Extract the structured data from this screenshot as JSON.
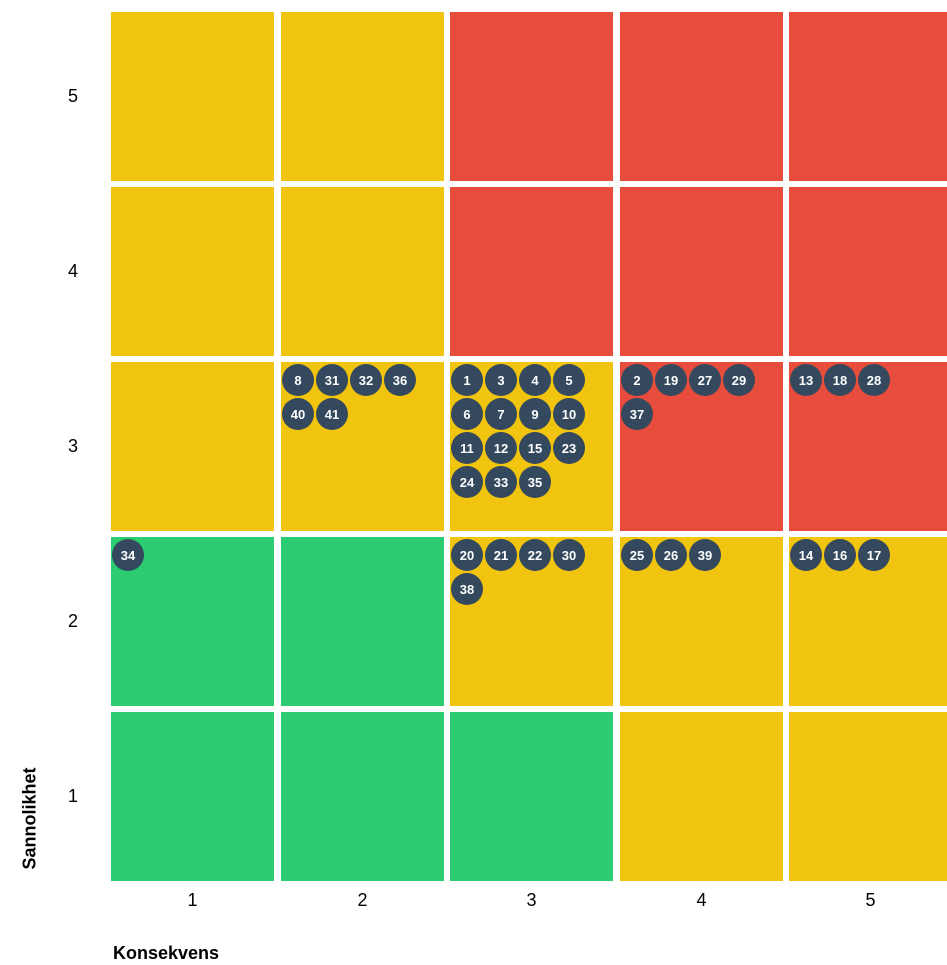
{
  "chart_data": {
    "type": "heatmap",
    "xlabel": "Konsekvens",
    "ylabel": "Sannolikhet",
    "x_ticks": [
      "1",
      "2",
      "3",
      "4",
      "5"
    ],
    "y_ticks": [
      "1",
      "2",
      "3",
      "4",
      "5"
    ],
    "colors": {
      "green": "#2ecc71",
      "yellow": "#f1c40f",
      "red": "#e74c3c",
      "marker": "#34495e",
      "marker_text": "#ffffff"
    },
    "cell_colors": [
      [
        "green",
        "green",
        "green",
        "yellow",
        "yellow"
      ],
      [
        "green",
        "green",
        "yellow",
        "yellow",
        "yellow"
      ],
      [
        "yellow",
        "yellow",
        "yellow",
        "red",
        "red"
      ],
      [
        "yellow",
        "yellow",
        "red",
        "red",
        "red"
      ],
      [
        "yellow",
        "yellow",
        "red",
        "red",
        "red"
      ]
    ],
    "risks": [
      {
        "likelihood": 2,
        "consequence": 1,
        "ids": [
          "34"
        ]
      },
      {
        "likelihood": 3,
        "consequence": 2,
        "ids": [
          "8",
          "31",
          "32",
          "36",
          "40",
          "41"
        ]
      },
      {
        "likelihood": 3,
        "consequence": 3,
        "ids": [
          "1",
          "3",
          "4",
          "5",
          "6",
          "7",
          "9",
          "10",
          "11",
          "12",
          "15",
          "23",
          "24",
          "33",
          "35"
        ]
      },
      {
        "likelihood": 3,
        "consequence": 4,
        "ids": [
          "2",
          "19",
          "27",
          "29",
          "37"
        ]
      },
      {
        "likelihood": 3,
        "consequence": 5,
        "ids": [
          "13",
          "18",
          "28"
        ]
      },
      {
        "likelihood": 2,
        "consequence": 3,
        "ids": [
          "20",
          "21",
          "22",
          "30",
          "38"
        ]
      },
      {
        "likelihood": 2,
        "consequence": 4,
        "ids": [
          "25",
          "26",
          "39"
        ]
      },
      {
        "likelihood": 2,
        "consequence": 5,
        "ids": [
          "14",
          "16",
          "17"
        ]
      }
    ]
  }
}
